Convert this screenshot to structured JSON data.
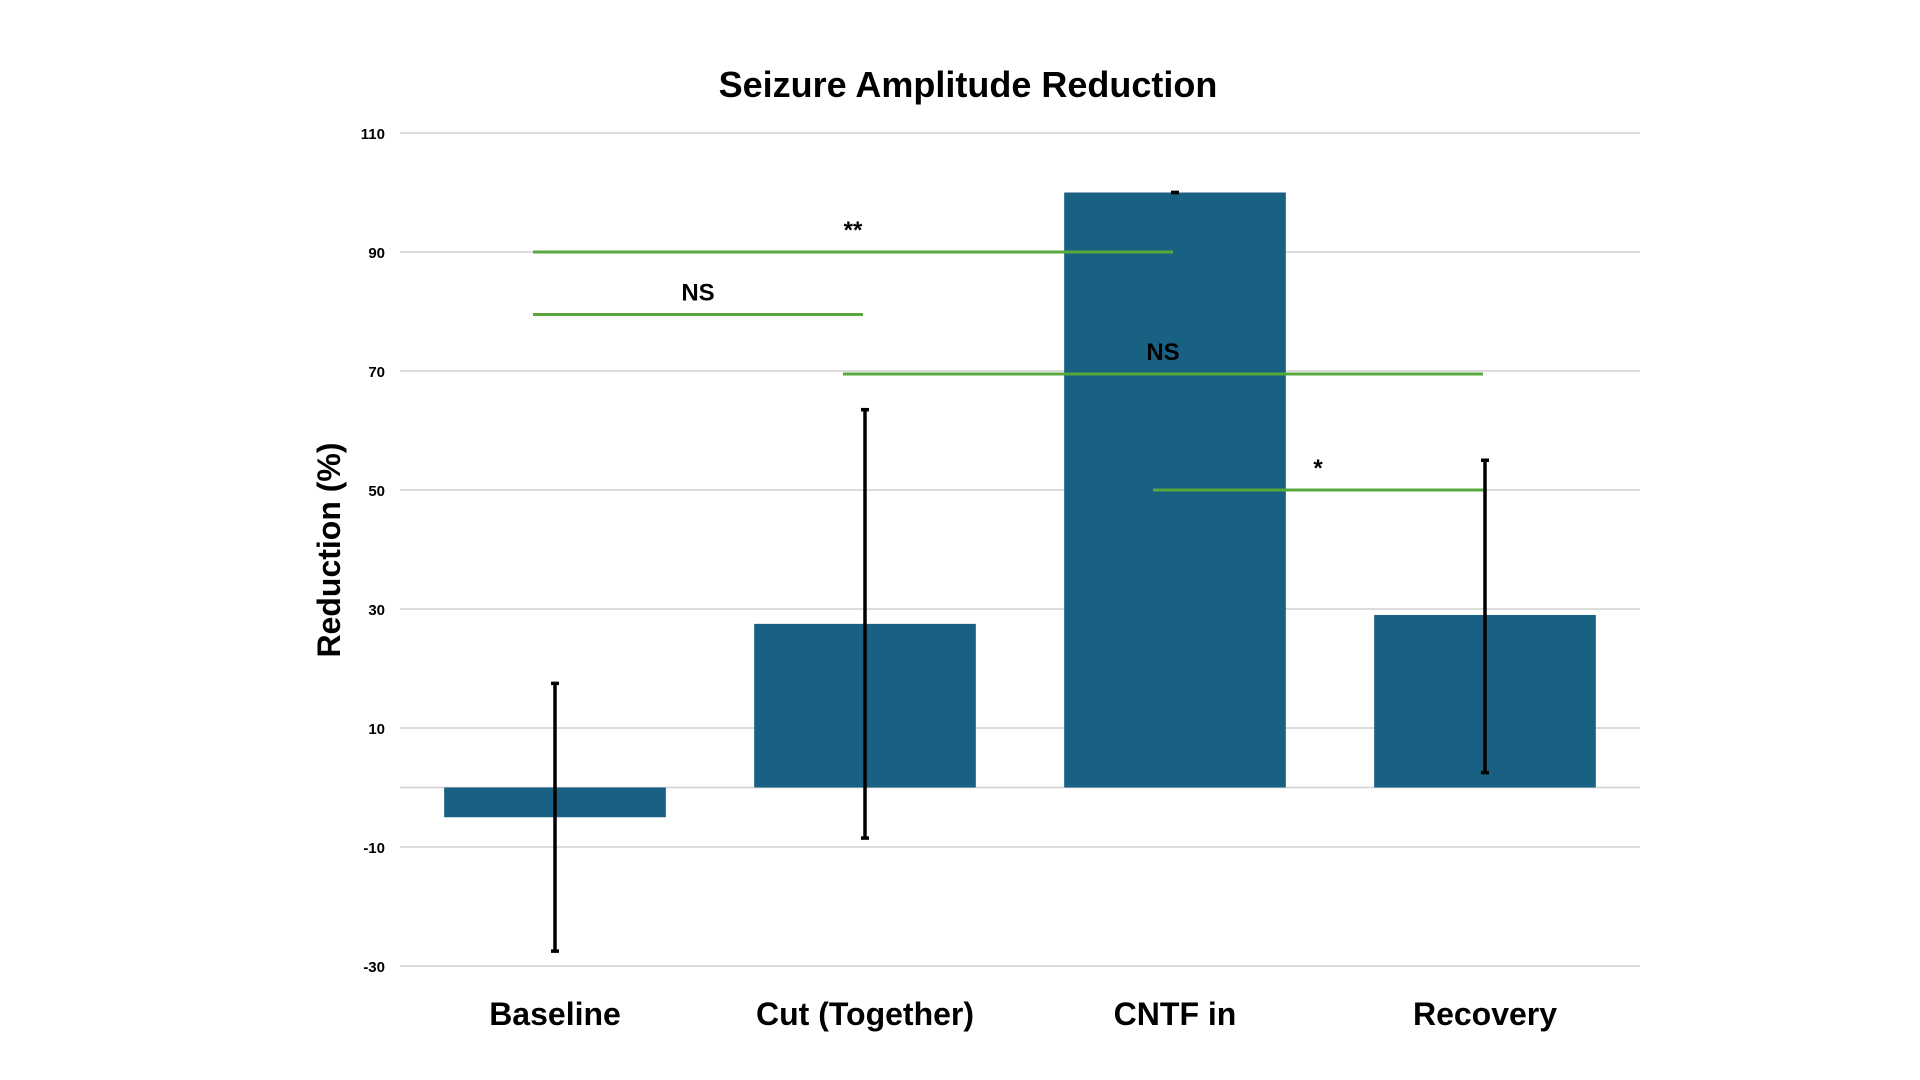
{
  "chart_data": {
    "type": "bar",
    "title": "Seizure Amplitude Reduction",
    "xlabel": "",
    "ylabel": "Reduction (%)",
    "ylim": [
      -30,
      110
    ],
    "yticks": [
      110,
      90,
      70,
      50,
      30,
      10,
      -10,
      -30
    ],
    "grid": true,
    "categories": [
      "Baseline",
      "Cut (Together)",
      "CNTF in",
      "Recovery"
    ],
    "values": [
      -5,
      27.5,
      100,
      29
    ],
    "error_bars": [
      {
        "low": -27.5,
        "high": 17.5
      },
      {
        "low": -8.5,
        "high": 63.5
      },
      {
        "low": 100,
        "high": 100
      },
      {
        "low": 2.5,
        "high": 55
      }
    ],
    "bar_color": "#186183",
    "significance": [
      {
        "label": "**",
        "from_category": 0,
        "to_category": 2,
        "y": 90
      },
      {
        "label": "NS",
        "from_category": 0,
        "to_category": 1,
        "y": 79.5
      },
      {
        "label": "NS",
        "from_category": 1,
        "to_category": 3,
        "y": 69.5
      },
      {
        "label": "*",
        "from_category": 2,
        "to_category": 3,
        "y": 50
      }
    ],
    "significance_color": "#58a83c"
  }
}
